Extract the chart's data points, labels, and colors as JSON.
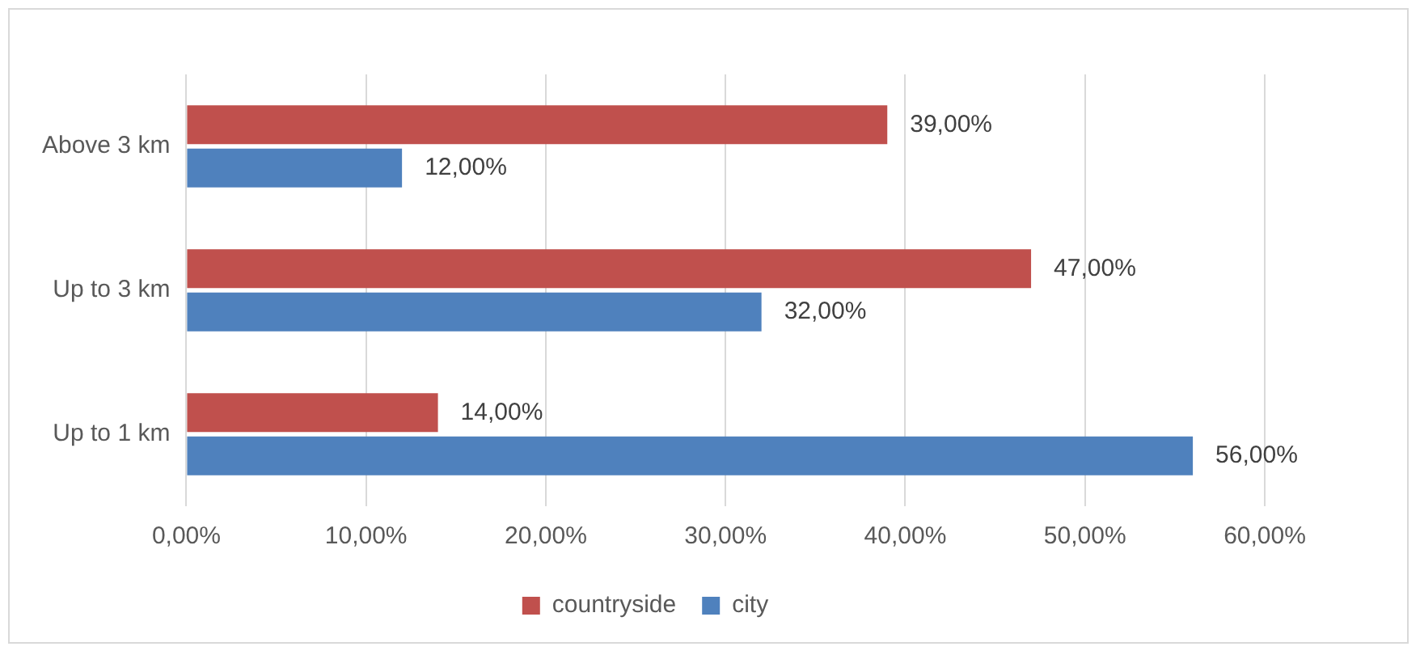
{
  "chart_data": {
    "type": "bar",
    "orientation": "horizontal",
    "categories": [
      "Above 3 km",
      "Up to 3 km",
      "Up to 1 km"
    ],
    "series": [
      {
        "name": "countryside",
        "color": "#c0504d",
        "values": [
          39,
          47,
          14
        ],
        "value_labels": [
          "39,00%",
          "47,00%",
          "14,00%"
        ]
      },
      {
        "name": "city",
        "color": "#4f81bd",
        "values": [
          12,
          32,
          56
        ],
        "value_labels": [
          "12,00%",
          "32,00%",
          "56,00%"
        ]
      }
    ],
    "xlim": [
      0,
      60
    ],
    "xticks": [
      {
        "value": 0,
        "label": "0,00%"
      },
      {
        "value": 10,
        "label": "10,00%"
      },
      {
        "value": 20,
        "label": "20,00%"
      },
      {
        "value": 30,
        "label": "30,00%"
      },
      {
        "value": 40,
        "label": "40,00%"
      },
      {
        "value": 50,
        "label": "50,00%"
      },
      {
        "value": 60,
        "label": "60,00%"
      }
    ],
    "grid": "x",
    "legend": "bottom"
  }
}
